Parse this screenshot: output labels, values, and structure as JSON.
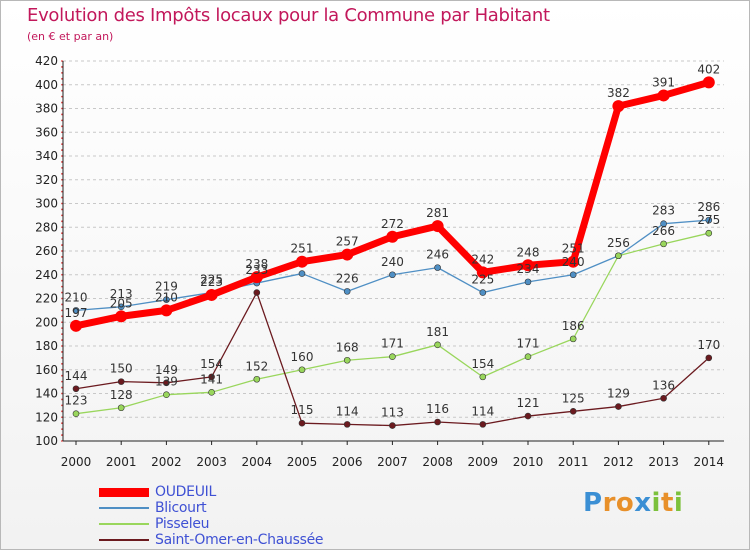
{
  "header": {
    "title": "Evolution des Impôts locaux pour la Commune par Habitant",
    "subtitle": "(en € et par an)"
  },
  "logo": {
    "text": "Proxiti"
  },
  "chart_data": {
    "type": "line",
    "title": "Evolution des Impôts locaux pour la Commune par Habitant",
    "subtitle": "(en € et par an)",
    "xlabel": "",
    "ylabel": "",
    "x": [
      "2000",
      "2001",
      "2002",
      "2003",
      "2004",
      "2005",
      "2006",
      "2007",
      "2008",
      "2009",
      "2010",
      "2011",
      "2012",
      "2013",
      "2014"
    ],
    "ylim": [
      100,
      420
    ],
    "yticks": [
      100,
      120,
      140,
      160,
      180,
      200,
      220,
      240,
      260,
      280,
      300,
      320,
      340,
      360,
      380,
      400,
      420
    ],
    "grid": "horizontal-dashed",
    "legend_position": "bottom-left",
    "series": [
      {
        "name": "OUDEUIL",
        "color": "#ff0000",
        "values": [
          197,
          205,
          210,
          223,
          238,
          251,
          257,
          272,
          281,
          242,
          248,
          251,
          382,
          391,
          402
        ]
      },
      {
        "name": "Blicourt",
        "color": "#4f8fc4",
        "values": [
          210,
          213,
          219,
          225,
          233,
          241,
          226,
          240,
          246,
          225,
          234,
          240,
          256,
          283,
          286
        ]
      },
      {
        "name": "Pisseleu",
        "color": "#99d65c",
        "values": [
          123,
          128,
          139,
          141,
          152,
          160,
          168,
          171,
          181,
          154,
          171,
          186,
          256,
          266,
          275
        ]
      },
      {
        "name": "Saint-Omer-en-Chaussée",
        "color": "#6b1a1f",
        "values": [
          144,
          150,
          149,
          154,
          225,
          115,
          114,
          113,
          116,
          114,
          121,
          125,
          129,
          136,
          170
        ]
      }
    ],
    "point_labels": {
      "OUDEUIL": [
        "197",
        "205",
        "210",
        "223",
        "238",
        "251",
        "257",
        "272",
        "281",
        "242",
        "248",
        "251",
        "382",
        "391",
        "402"
      ],
      "Blicourt": [
        "210",
        "213",
        "219",
        "225",
        "233",
        "",
        "226",
        "240",
        "246",
        "225",
        "234",
        "240",
        "256",
        "283",
        "286"
      ],
      "Pisseleu": [
        "123",
        "128",
        "139",
        "141",
        "152",
        "160",
        "168",
        "171",
        "181",
        "154",
        "171",
        "186",
        "",
        "266",
        "275"
      ],
      "Saint-Omer-en-Chaussée": [
        "144",
        "150",
        "149",
        "154",
        "",
        "115",
        "114",
        "113",
        "116",
        "114",
        "121",
        "125",
        "129",
        "136",
        "170"
      ]
    }
  }
}
